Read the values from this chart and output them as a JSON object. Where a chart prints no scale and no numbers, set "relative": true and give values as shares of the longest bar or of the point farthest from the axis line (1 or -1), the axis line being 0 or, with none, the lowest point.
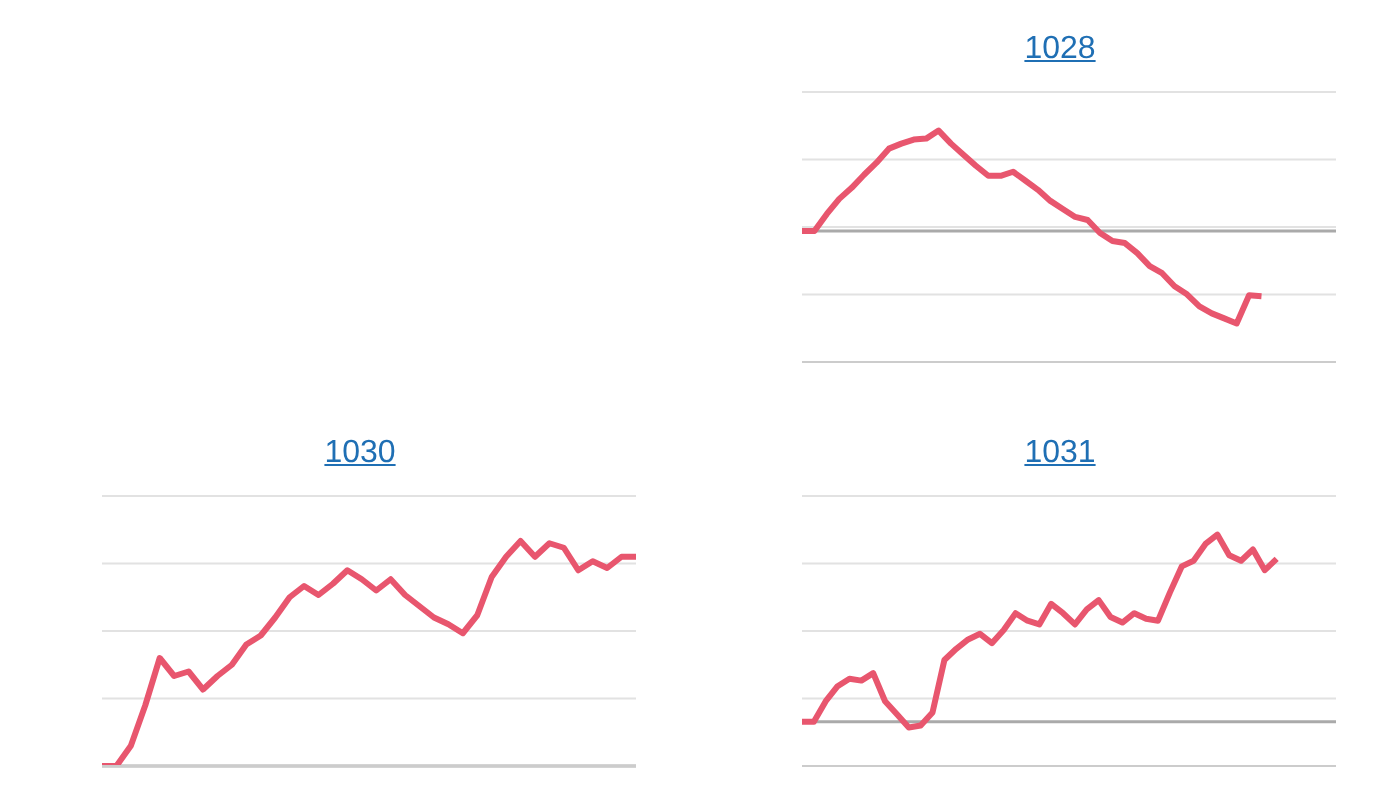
{
  "chart_data": [
    {
      "type": "line",
      "title": "1028",
      "relative": true,
      "grid": "y",
      "marker": "none",
      "categories": [
        null,
        null,
        null,
        null,
        null,
        null,
        null,
        null,
        null,
        null,
        null,
        null,
        null,
        null,
        null,
        null,
        null,
        null,
        null,
        null,
        null,
        null,
        null,
        null,
        null,
        null,
        null,
        null,
        null,
        null,
        null,
        null,
        null,
        null,
        null,
        null,
        null,
        null,
        null,
        null,
        null,
        null,
        null,
        null
      ],
      "series": [
        {
          "color": "#e8566e",
          "values": [
            0,
            0,
            0.17,
            0.32,
            0.43,
            0.56,
            0.68,
            0.82,
            0.87,
            0.91,
            0.92,
            1,
            0.87,
            0.76,
            0.65,
            0.55,
            0.55,
            0.59,
            0.5,
            0.41,
            0.3,
            0.22,
            0.14,
            0.11,
            -0.02,
            -0.1,
            -0.12,
            -0.22,
            -0.35,
            -0.42,
            -0.55,
            -0.63,
            -0.75,
            -0.82,
            -0.87,
            -0.92,
            -0.64,
            -0.65,
            null,
            null,
            null,
            null,
            null,
            null
          ]
        }
      ]
    },
    {
      "type": "line",
      "title": "1030",
      "relative": true,
      "grid": "y",
      "marker": "none",
      "categories": [
        null,
        null,
        null,
        null,
        null,
        null,
        null,
        null,
        null,
        null,
        null,
        null,
        null,
        null,
        null,
        null,
        null,
        null,
        null,
        null,
        null,
        null,
        null,
        null,
        null,
        null,
        null,
        null,
        null,
        null,
        null,
        null,
        null,
        null,
        null,
        null,
        null,
        null
      ],
      "series": [
        {
          "color": "#e8566e",
          "values": [
            0,
            0,
            0.09,
            0.27,
            0.48,
            0.4,
            0.42,
            0.34,
            0.4,
            0.45,
            0.54,
            0.58,
            0.66,
            0.75,
            0.8,
            0.76,
            0.81,
            0.87,
            0.83,
            0.78,
            0.83,
            0.76,
            0.71,
            0.66,
            0.63,
            0.59,
            0.67,
            0.84,
            0.93,
            1,
            0.93,
            0.99,
            0.97,
            0.87,
            0.91,
            0.88,
            0.93,
            0.93
          ]
        }
      ]
    },
    {
      "type": "line",
      "title": "1031",
      "relative": true,
      "grid": "y",
      "marker": "none",
      "categories": [
        null,
        null,
        null,
        null,
        null,
        null,
        null,
        null,
        null,
        null,
        null,
        null,
        null,
        null,
        null,
        null,
        null,
        null,
        null,
        null,
        null,
        null,
        null,
        null,
        null,
        null,
        null,
        null,
        null,
        null,
        null,
        null,
        null,
        null,
        null,
        null,
        null,
        null,
        null,
        null,
        null,
        null,
        null,
        null,
        null,
        null
      ],
      "series": [
        {
          "color": "#e8566e",
          "values": [
            0,
            0,
            0.11,
            0.19,
            0.23,
            0.22,
            0.26,
            0.11,
            0.04,
            -0.03,
            -0.02,
            0.05,
            0.33,
            0.39,
            0.44,
            0.47,
            0.42,
            0.49,
            0.58,
            0.54,
            0.52,
            0.63,
            0.58,
            0.52,
            0.6,
            0.65,
            0.56,
            0.53,
            0.58,
            0.55,
            0.54,
            0.69,
            0.83,
            0.86,
            0.95,
            1,
            0.89,
            0.86,
            0.92,
            0.81,
            0.87,
            null,
            null,
            null,
            null,
            null
          ]
        }
      ]
    }
  ]
}
